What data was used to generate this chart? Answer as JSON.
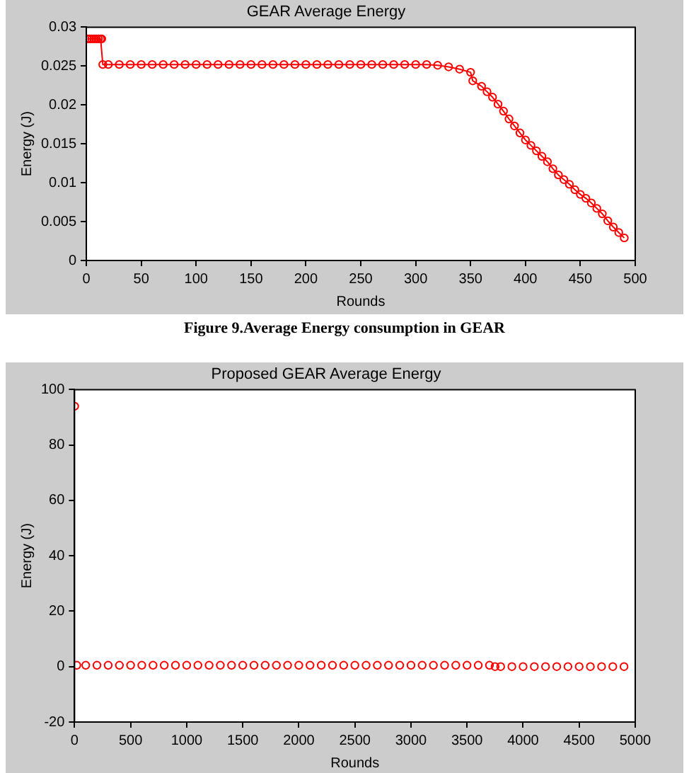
{
  "chart_data": [
    {
      "type": "line",
      "title": "GEAR Average Energy",
      "xlabel": "Rounds",
      "ylabel": "Energy (J)",
      "marker": "circle",
      "grid": false,
      "legend": false,
      "xlim": [
        0,
        500
      ],
      "xticks": [
        0,
        50,
        100,
        150,
        200,
        250,
        300,
        350,
        400,
        450,
        500
      ],
      "ylim": [
        0,
        0.03
      ],
      "yticks": [
        0,
        0.005,
        0.01,
        0.015,
        0.02,
        0.025,
        0.03
      ],
      "annotations": [
        "Figure 9.Average Energy consumption in GEAR"
      ],
      "series": [
        {
          "color": "#ff0000",
          "x": [
            1,
            3,
            5,
            7,
            9,
            11,
            13,
            14,
            15,
            20,
            30,
            40,
            50,
            60,
            70,
            80,
            90,
            100,
            110,
            120,
            130,
            140,
            150,
            160,
            170,
            180,
            190,
            200,
            210,
            220,
            230,
            240,
            250,
            260,
            270,
            280,
            290,
            300,
            310,
            320,
            330,
            340,
            350,
            352,
            360,
            365,
            370,
            375,
            380,
            385,
            390,
            395,
            400,
            405,
            410,
            415,
            420,
            425,
            430,
            435,
            440,
            445,
            450,
            455,
            460,
            465,
            470,
            475,
            480,
            485,
            490
          ],
          "values": [
            0.0285,
            0.0285,
            0.0285,
            0.0285,
            0.0285,
            0.0285,
            0.0285,
            0.0285,
            0.0252,
            0.0252,
            0.0252,
            0.0252,
            0.0252,
            0.0252,
            0.0252,
            0.0252,
            0.0252,
            0.0252,
            0.0252,
            0.0252,
            0.0252,
            0.0252,
            0.0252,
            0.0252,
            0.0252,
            0.0252,
            0.0252,
            0.0252,
            0.0252,
            0.0252,
            0.0252,
            0.0252,
            0.0252,
            0.0252,
            0.0252,
            0.0252,
            0.0252,
            0.0252,
            0.0252,
            0.0251,
            0.0249,
            0.0246,
            0.0242,
            0.0231,
            0.0224,
            0.0217,
            0.021,
            0.0201,
            0.0192,
            0.0182,
            0.0173,
            0.0164,
            0.0155,
            0.0148,
            0.0141,
            0.0134,
            0.0127,
            0.0118,
            0.011,
            0.0104,
            0.0098,
            0.0091,
            0.0085,
            0.008,
            0.0074,
            0.0067,
            0.006,
            0.0051,
            0.0043,
            0.0036,
            0.0029
          ]
        }
      ]
    },
    {
      "type": "scatter",
      "title": "Proposed GEAR Average Energy",
      "xlabel": "Rounds",
      "ylabel": "Energy (J)",
      "marker": "circle",
      "grid": false,
      "legend": false,
      "xlim": [
        0,
        5000
      ],
      "xticks": [
        0,
        500,
        1000,
        1500,
        2000,
        2500,
        3000,
        3500,
        4000,
        4500,
        5000
      ],
      "ylim": [
        -20,
        100
      ],
      "yticks": [
        -20,
        0,
        20,
        40,
        60,
        80,
        100
      ],
      "series": [
        {
          "color": "#ff0000",
          "x": [
            1,
            20,
            100,
            200,
            300,
            400,
            500,
            600,
            700,
            800,
            900,
            1000,
            1100,
            1200,
            1300,
            1400,
            1500,
            1600,
            1700,
            1800,
            1900,
            2000,
            2100,
            2200,
            2300,
            2400,
            2500,
            2600,
            2700,
            2800,
            2900,
            3000,
            3100,
            3200,
            3300,
            3400,
            3500,
            3600,
            3700,
            3750,
            3800,
            3900,
            4000,
            4100,
            4200,
            4300,
            4400,
            4500,
            4600,
            4700,
            4800,
            4900
          ],
          "values": [
            94,
            0.5,
            0.5,
            0.5,
            0.5,
            0.5,
            0.5,
            0.5,
            0.5,
            0.5,
            0.5,
            0.5,
            0.5,
            0.5,
            0.5,
            0.5,
            0.5,
            0.5,
            0.5,
            0.5,
            0.5,
            0.5,
            0.5,
            0.5,
            0.5,
            0.5,
            0.5,
            0.5,
            0.5,
            0.5,
            0.5,
            0.5,
            0.5,
            0.5,
            0.5,
            0.5,
            0.5,
            0.5,
            0.5,
            0,
            0,
            0,
            0,
            0,
            0,
            0,
            0,
            0,
            0,
            0,
            0,
            0
          ]
        }
      ]
    }
  ]
}
